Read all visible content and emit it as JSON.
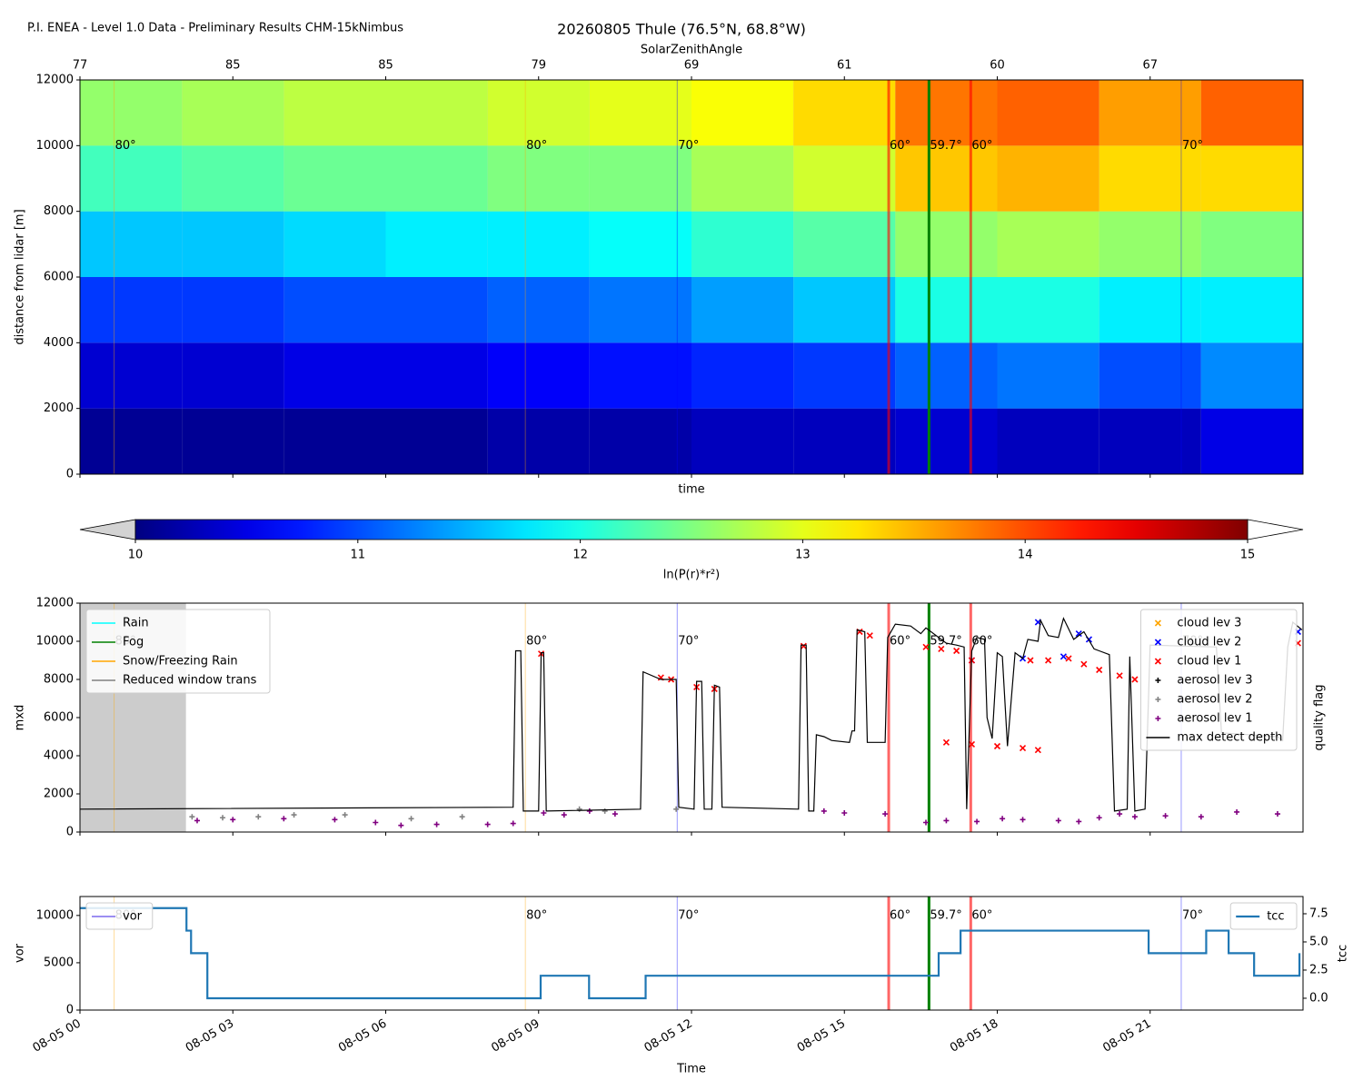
{
  "header": "P.I. ENEA - Level 1.0 Data - Preliminary Results CHM-15kNimbus",
  "sza_markers": [
    {
      "x": 0.67,
      "label": "80°",
      "color": "orange",
      "linewidth": 1,
      "alpha": 0.4
    },
    {
      "x": 8.74,
      "label": "80°",
      "color": "orange",
      "linewidth": 1,
      "alpha": 0.4
    },
    {
      "x": 11.72,
      "label": "70°",
      "color": "blue",
      "linewidth": 1,
      "alpha": 0.4
    },
    {
      "x": 15.87,
      "label": "60°",
      "color": "red",
      "linewidth": 3,
      "alpha": 0.6
    },
    {
      "x": 16.66,
      "label": "59.7°",
      "color": "green",
      "linewidth": 3,
      "alpha": 1
    },
    {
      "x": 17.48,
      "label": "60°",
      "color": "red",
      "linewidth": 3,
      "alpha": 0.6
    },
    {
      "x": 21.61,
      "label": "70°",
      "color": "blue",
      "linewidth": 1,
      "alpha": 0.4
    }
  ],
  "chart_data": [
    {
      "type": "heatmap",
      "title": "20260805 Thule (76.5°N, 68.8°W)",
      "top_axis_label": "SolarZenithAngle",
      "top_ticks": [
        {
          "value": 0,
          "label": "77"
        },
        {
          "value": 3,
          "label": "85"
        },
        {
          "value": 6,
          "label": "85"
        },
        {
          "value": 9,
          "label": "79"
        },
        {
          "value": 12,
          "label": "69"
        },
        {
          "value": 15,
          "label": "61"
        },
        {
          "value": 18,
          "label": "60"
        },
        {
          "value": 21,
          "label": "67"
        }
      ],
      "xlabel": "time",
      "ylabel": "distance from lidar [m]",
      "xlim": [
        0,
        24
      ],
      "xticks": [
        0,
        3,
        6,
        9,
        12,
        15,
        18,
        21
      ],
      "ylim": [
        0,
        12000
      ],
      "yticks": [
        0,
        2000,
        4000,
        6000,
        8000,
        10000,
        12000
      ],
      "x_edges": [
        0,
        2,
        4,
        6,
        8,
        10,
        12,
        14,
        16,
        18,
        20,
        22,
        24
      ],
      "y_edges": [
        0,
        2000,
        4000,
        6000,
        8000,
        10000,
        12000
      ],
      "values": [
        [
          10.1,
          10.1,
          10.1,
          10.1,
          10.2,
          10.2,
          10.3,
          10.3,
          10.4,
          10.3,
          10.3,
          10.5
        ],
        [
          10.4,
          10.4,
          10.5,
          10.5,
          10.6,
          10.7,
          10.8,
          10.9,
          11.1,
          11.2,
          11.0,
          11.3
        ],
        [
          10.9,
          10.9,
          11.0,
          11.0,
          11.1,
          11.2,
          11.4,
          11.6,
          12.0,
          12.0,
          11.8,
          11.8
        ],
        [
          11.6,
          11.6,
          11.7,
          11.8,
          11.8,
          11.9,
          12.1,
          12.3,
          12.6,
          12.7,
          12.6,
          12.5
        ],
        [
          12.2,
          12.3,
          12.4,
          12.4,
          12.5,
          12.5,
          12.7,
          12.9,
          13.4,
          13.5,
          13.3,
          13.3
        ],
        [
          12.6,
          12.7,
          12.8,
          12.8,
          12.9,
          13.0,
          13.1,
          13.3,
          13.8,
          13.9,
          13.6,
          13.9
        ]
      ],
      "colorbar": {
        "label": "ln(P(r)*r²)",
        "clim": [
          10,
          15
        ],
        "ticks": [
          10,
          11,
          12,
          13,
          14,
          15
        ],
        "colormap": "jet",
        "under": "#d3d3d3",
        "over": "#ffffff"
      }
    },
    {
      "type": "line",
      "ylabel": "mxd",
      "y2label": "quality flag",
      "xlim": [
        0,
        24
      ],
      "xticks": [
        0,
        3,
        6,
        9,
        12,
        15,
        18,
        21
      ],
      "ylim": [
        0,
        12000
      ],
      "yticks": [
        0,
        2000,
        4000,
        6000,
        8000,
        10000,
        12000
      ],
      "flags_legend": "upper left",
      "legend": "upper right",
      "flags": [
        {
          "name": "Rain",
          "color": "cyan",
          "spans": []
        },
        {
          "name": "Fog",
          "color": "green",
          "spans": []
        },
        {
          "name": "Snow/Freezing Rain",
          "color": "orange",
          "spans": []
        },
        {
          "name": "Reduced window trans",
          "color": "gray",
          "spans": [
            [
              0,
              2.08
            ]
          ]
        }
      ],
      "series": [
        {
          "name": "cloud lev 3",
          "color": "orange",
          "marker": "x",
          "x": [],
          "values": []
        },
        {
          "name": "cloud lev 2",
          "color": "blue",
          "marker": "x",
          "x": [
            17.5,
            18.5,
            18.8,
            19.3,
            19.6,
            19.8,
            23.9
          ],
          "values": [
            9000,
            9100,
            11000,
            9200,
            10400,
            10100,
            10500
          ]
        },
        {
          "name": "cloud lev 1",
          "color": "red",
          "marker": "x",
          "x": [
            9.05,
            11.4,
            11.6,
            12.1,
            12.45,
            14.2,
            15.3,
            15.5,
            16.6,
            16.9,
            17.2,
            17.5,
            17.0,
            17.5,
            18.0,
            18.5,
            18.8,
            18.65,
            19.0,
            19.4,
            19.7,
            20.0,
            20.4,
            20.7,
            23.9
          ],
          "values": [
            9350,
            8100,
            8000,
            7600,
            7500,
            9750,
            10500,
            10300,
            9700,
            9600,
            9500,
            9000,
            4700,
            4600,
            4500,
            4400,
            4300,
            9000,
            9000,
            9100,
            8800,
            8500,
            8200,
            8000,
            9900
          ]
        },
        {
          "name": "aerosol lev 3",
          "color": "black",
          "marker": "+",
          "x": [],
          "values": []
        },
        {
          "name": "aerosol lev 2",
          "color": "gray",
          "marker": "+",
          "x": [
            2.2,
            2.8,
            3.5,
            4.2,
            5.2,
            6.5,
            7.5,
            9.8,
            10.3,
            11.7
          ],
          "values": [
            800,
            750,
            800,
            900,
            900,
            700,
            800,
            1200,
            1100,
            1200
          ]
        },
        {
          "name": "aerosol lev 1",
          "color": "purple",
          "marker": "+",
          "x": [
            2.3,
            3,
            4,
            5,
            5.8,
            6.3,
            7,
            8,
            8.5,
            9.1,
            9.5,
            10,
            10.5,
            14.6,
            15.0,
            15.8,
            16.6,
            17.0,
            17.6,
            18.1,
            18.5,
            19.2,
            19.6,
            20.0,
            20.4,
            20.7,
            21.3,
            22.0,
            22.7,
            23.5
          ],
          "values": [
            600,
            650,
            700,
            650,
            500,
            350,
            400,
            400,
            450,
            1000,
            900,
            1100,
            950,
            1100,
            1000,
            950,
            500,
            600,
            550,
            700,
            650,
            600,
            550,
            750,
            950,
            800,
            850,
            800,
            1050,
            950
          ]
        },
        {
          "name": "max detect depth",
          "color": "black",
          "x": [
            0,
            8.5,
            8.55,
            8.65,
            8.7,
            9.0,
            9.05,
            9.1,
            9.15,
            11.0,
            11.05,
            11.4,
            11.7,
            11.75,
            12.05,
            12.1,
            12.2,
            12.25,
            12.4,
            12.45,
            12.55,
            12.6,
            14.1,
            14.15,
            14.25,
            14.3,
            14.4,
            14.45,
            14.6,
            14.75,
            15.1,
            15.15,
            15.2,
            15.25,
            15.4,
            15.45,
            15.8,
            15.85,
            16.0,
            16.3,
            16.5,
            16.6,
            17.0,
            17.2,
            17.35,
            17.4,
            17.5,
            17.6,
            17.75,
            17.8,
            17.9,
            18.0,
            18.1,
            18.2,
            18.35,
            18.5,
            18.6,
            18.8,
            18.85,
            19.0,
            19.2,
            19.3,
            19.5,
            19.7,
            19.9,
            20.0,
            20.2,
            20.3,
            20.55,
            20.6,
            20.7,
            20.9,
            21.0,
            22.3,
            22.4,
            23.5,
            23.6,
            23.7,
            23.8,
            23.98
          ],
          "values": [
            1200,
            1300,
            9500,
            9500,
            1100,
            1100,
            9400,
            9400,
            1100,
            1200,
            8400,
            8000,
            8000,
            1300,
            1200,
            7900,
            7900,
            1200,
            1200,
            7700,
            7600,
            1300,
            1200,
            9800,
            9800,
            1100,
            1100,
            5100,
            5000,
            4800,
            4700,
            5300,
            5300,
            10600,
            10500,
            4700,
            4700,
            10200,
            10900,
            10800,
            10400,
            10700,
            9900,
            9800,
            9700,
            1200,
            9500,
            10200,
            10100,
            6000,
            4900,
            9400,
            9200,
            4500,
            9400,
            9100,
            10100,
            10000,
            11100,
            10300,
            10200,
            11200,
            10100,
            10500,
            9600,
            9500,
            9300,
            1100,
            1200,
            9200,
            1100,
            1200,
            9800,
            9700,
            5200,
            5000,
            4800,
            9700,
            11000,
            10600
          ]
        }
      ]
    },
    {
      "type": "line",
      "xlabel": "Time",
      "ylabel": "vor",
      "y2label": "tcc",
      "xlim": [
        0,
        24
      ],
      "xticks": [
        {
          "value": 0,
          "label": "08-05 00"
        },
        {
          "value": 3,
          "label": "08-05 03"
        },
        {
          "value": 6,
          "label": "08-05 06"
        },
        {
          "value": 9,
          "label": "08-05 09"
        },
        {
          "value": 12,
          "label": "08-05 12"
        },
        {
          "value": 15,
          "label": "08-05 15"
        },
        {
          "value": 18,
          "label": "08-05 18"
        },
        {
          "value": 21,
          "label": "08-05 21"
        }
      ],
      "ylim": [
        0,
        12000
      ],
      "yticks": [
        0,
        5000,
        10000
      ],
      "y2lim": [
        -1.05,
        9.03
      ],
      "y2ticks": [
        {
          "value": 0,
          "label": "0.0"
        },
        {
          "value": 2.5,
          "label": "2.5"
        },
        {
          "value": 5,
          "label": "5.0"
        },
        {
          "value": 7.5,
          "label": "7.5"
        }
      ],
      "series": [
        {
          "name": "vor",
          "color": "#7b68ee",
          "legend": "upper left",
          "x": [],
          "values": []
        },
        {
          "name": "tcc",
          "color": "#1f77b4",
          "axis": "y2",
          "legend": "upper right",
          "drawstyle": "steps-post",
          "linewidth": 2.2,
          "x": [
            0,
            2.09,
            2.18,
            2.5,
            9.04,
            9.99,
            11.1,
            16.85,
            17.28,
            20.97,
            22.1,
            22.54,
            23.04,
            23.93
          ],
          "values": [
            8,
            6,
            4,
            0,
            2,
            0,
            2,
            4,
            6,
            4,
            6,
            4,
            2,
            4
          ]
        }
      ]
    }
  ]
}
